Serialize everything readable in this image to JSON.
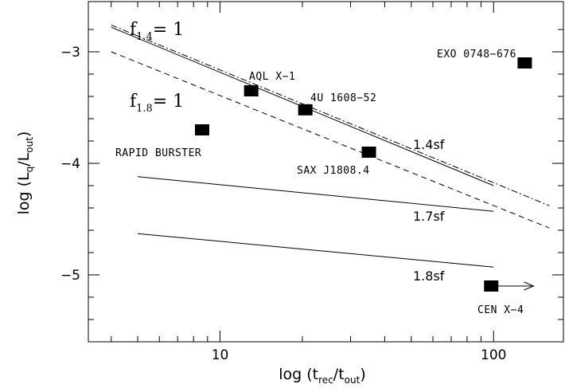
{
  "chart_data": {
    "type": "scatter",
    "xscale": "log",
    "xlim": [
      3.3,
      180
    ],
    "ylim": [
      -5.6,
      -2.55
    ],
    "xticks_major": [
      10,
      100
    ],
    "xtick_labels": [
      "10",
      "100"
    ],
    "yticks_major": [
      -3,
      -4,
      -5
    ],
    "ytick_labels": [
      "−3",
      "−4",
      "−5"
    ],
    "xlabel": {
      "prefix": "log  (t",
      "sub1": "rec",
      "mid": "/t",
      "sub2": "out",
      "suffix": ")"
    },
    "ylabel": {
      "prefix": "log (L",
      "sub1": "q",
      "mid": "/L",
      "sub2": "out",
      "suffix": ")"
    },
    "sources": [
      {
        "name": "AQL X−1",
        "x": 13.0,
        "y": -3.35
      },
      {
        "name": "4U 1608−52",
        "x": 20.5,
        "y": -3.52
      },
      {
        "name": "EXO 0748−676",
        "x": 130,
        "y": -3.1
      },
      {
        "name": "RAPID BURSTER",
        "x": 8.6,
        "y": -3.7
      },
      {
        "name": "SAX J1808.4",
        "x": 35,
        "y": -3.9
      },
      {
        "name": "CEN X−4",
        "x": 98,
        "y": -5.1,
        "arrow_to_x": 140
      }
    ],
    "curves": [
      {
        "label": "f=1 (1.4)",
        "style": "solid",
        "x": [
          4,
          100
        ],
        "y": [
          -2.78,
          -4.2
        ]
      },
      {
        "label": "f=1 (1.4) dash-dot",
        "style": "dashdot",
        "x": [
          4,
          160
        ],
        "y": [
          -2.76,
          -4.38
        ]
      },
      {
        "label": "f=1 (1.8)",
        "style": "dashed",
        "x": [
          4,
          160
        ],
        "y": [
          -3.0,
          -4.58
        ]
      },
      {
        "label": "1.7sf",
        "style": "solid",
        "x": [
          5,
          100
        ],
        "y": [
          -4.12,
          -4.43
        ]
      },
      {
        "label": "1.8sf",
        "style": "solid",
        "x": [
          5,
          100
        ],
        "y": [
          -4.63,
          -4.93
        ]
      }
    ],
    "annotations": {
      "f14": {
        "base": "f",
        "sub": "1.4",
        "rest": "= 1"
      },
      "f18": {
        "base": "f",
        "sub": "1.8",
        "rest": "= 1"
      },
      "sf14": "1.4sf",
      "sf17": "1.7sf",
      "sf18": "1.8sf"
    }
  }
}
